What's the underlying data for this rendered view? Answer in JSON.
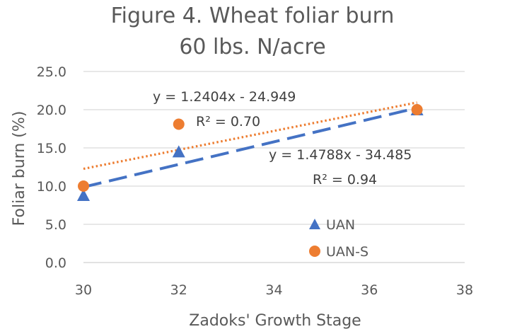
{
  "chart_data": {
    "type": "scatter",
    "title": "Figure 4. Wheat foliar burn",
    "subtitle": "60 lbs. N/acre",
    "xlabel": "Zadoks' Growth Stage",
    "ylabel": "Foliar burn (%)",
    "xlim": [
      30,
      38
    ],
    "ylim": [
      0,
      25
    ],
    "x_ticks": [
      "30",
      "32",
      "34",
      "36",
      "38"
    ],
    "y_ticks": [
      "0.0",
      "5.0",
      "10.0",
      "15.0",
      "20.0",
      "25.0"
    ],
    "grid": "horizontal",
    "legend_position": "bottom-right",
    "series": [
      {
        "name": "UAN",
        "marker": "triangle",
        "color": "#4472C4",
        "x": [
          30,
          32,
          37
        ],
        "y": [
          8.8,
          14.5,
          20.0
        ],
        "trendline": {
          "style": "dashed",
          "slope": 1.4788,
          "intercept": -34.485,
          "equation": "y = 1.4788x - 34.485",
          "r2": "R² = 0.94"
        }
      },
      {
        "name": "UAN-S",
        "marker": "circle",
        "color": "#ED7D31",
        "x": [
          30,
          32,
          37
        ],
        "y": [
          10.0,
          18.1,
          20.0
        ],
        "trendline": {
          "style": "dotted",
          "slope": 1.2404,
          "intercept": -24.949,
          "equation": "y = 1.2404x - 24.949",
          "r2": "R² = 0.70"
        }
      }
    ]
  }
}
